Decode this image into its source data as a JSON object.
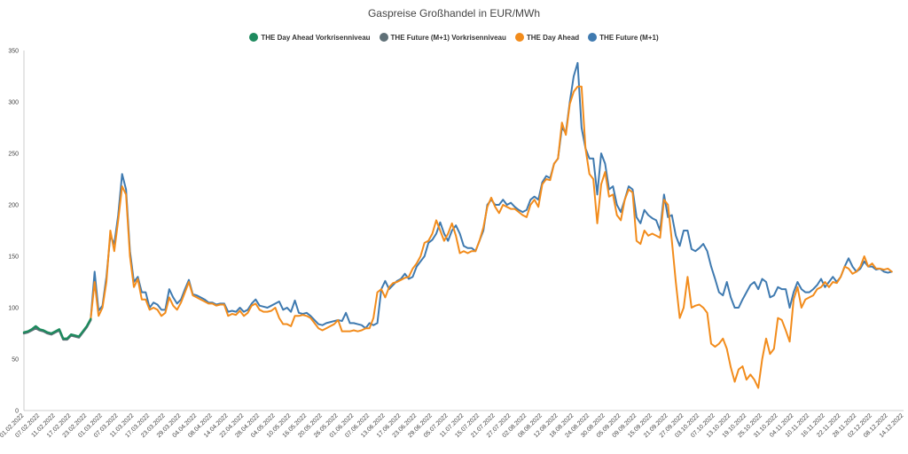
{
  "chart_data": {
    "type": "line",
    "title": "Gaspreise Großhandel in EUR/MWh",
    "xlabel": "",
    "ylabel": "",
    "ylim": [
      0,
      350
    ],
    "yticks": [
      0,
      50,
      100,
      150,
      200,
      250,
      300,
      350
    ],
    "grid": false,
    "legend_position": "top-center",
    "x_tick_labels": [
      "01.02.2022",
      "07.02.2022",
      "11.02.2022",
      "17.02.2022",
      "23.02.2022",
      "01.03.2022",
      "07.03.2022",
      "11.03.2022",
      "17.03.2022",
      "23.03.2022",
      "29.03.2022",
      "04.04.2022",
      "08.04.2022",
      "14.04.2022",
      "22.04.2022",
      "28.04.2022",
      "04.05.2022",
      "10.05.2022",
      "16.05.2022",
      "20.05.2022",
      "26.05.2022",
      "01.06.2022",
      "07.06.2022",
      "13.06.2022",
      "17.06.2022",
      "23.06.2022",
      "29.06.2022",
      "05.07.2022",
      "11.07.2022",
      "15.07.2022",
      "21.07.2022",
      "27.07.2022",
      "02.08.2022",
      "08.08.2022",
      "12.08.2022",
      "18.08.2022",
      "24.08.2022",
      "30.08.2022",
      "05.09.2022",
      "09.09.2022",
      "15.09.2022",
      "21.09.2022",
      "27.09.2022",
      "03.10.2022",
      "07.10.2022",
      "13.10.2022",
      "19.10.2022",
      "25.10.2022",
      "31.10.2022",
      "04.11.2022",
      "10.11.2022",
      "16.11.2022",
      "22.11.2022",
      "28.11.2022",
      "02.12.2022",
      "08.12.2022",
      "14.12.2022"
    ],
    "n_points": 225,
    "series": [
      {
        "name": "THE Day Ahead Vorkrisenniveau",
        "color": "#1e8a5e",
        "start_index": 0,
        "values": [
          76,
          77,
          79,
          82,
          79,
          78,
          76,
          75,
          77,
          79,
          70,
          70,
          74,
          73,
          72,
          77,
          82,
          89
        ]
      },
      {
        "name": "THE Future (M+1) Vorkrisenniveau",
        "color": "#5f7077",
        "start_index": 0,
        "values": [
          75,
          76,
          78,
          80,
          78,
          77,
          75,
          74,
          76,
          78,
          69,
          69,
          73,
          72,
          71,
          76,
          81,
          88
        ]
      },
      {
        "name": "THE Day Ahead",
        "color": "#f28c1c",
        "start_index": 17,
        "values": [
          89,
          125,
          92,
          100,
          125,
          175,
          155,
          185,
          218,
          210,
          150,
          120,
          128,
          108,
          108,
          98,
          100,
          98,
          92,
          95,
          110,
          102,
          98,
          105,
          115,
          125,
          112,
          110,
          108,
          106,
          104,
          104,
          102,
          103,
          103,
          92,
          94,
          93,
          97,
          92,
          95,
          102,
          104,
          98,
          96,
          96,
          97,
          100,
          90,
          84,
          84,
          82,
          92,
          92,
          93,
          92,
          90,
          85,
          80,
          78,
          80,
          82,
          84,
          88,
          77,
          77,
          77,
          78,
          77,
          78,
          80,
          80,
          90,
          115,
          118,
          110,
          120,
          124,
          125,
          127,
          129,
          130,
          138,
          143,
          150,
          163,
          165,
          172,
          185,
          175,
          165,
          172,
          182,
          170,
          153,
          155,
          153,
          155,
          155,
          165,
          178,
          198,
          207,
          198,
          192,
          200,
          198,
          196,
          196,
          193,
          190,
          188,
          200,
          205,
          198,
          220,
          225,
          224,
          240,
          245,
          280,
          268,
          298,
          310,
          315,
          315,
          255,
          230,
          225,
          182,
          220,
          232,
          208,
          210,
          190,
          185,
          205,
          215,
          212,
          165,
          162,
          175,
          170,
          172,
          170,
          168,
          205,
          200,
          165,
          125,
          90,
          100,
          130,
          100,
          102,
          103,
          100,
          95,
          65,
          62,
          65,
          70,
          60,
          42,
          28,
          40,
          43,
          30,
          35,
          30,
          22,
          50,
          70,
          55,
          60,
          90,
          88,
          78,
          67,
          108,
          120,
          100,
          108,
          110,
          112,
          118,
          120,
          125,
          120,
          125,
          124,
          130,
          140,
          138,
          133,
          135,
          140,
          150,
          140,
          143,
          138,
          138,
          137,
          138,
          135
        ]
      },
      {
        "name": "THE Future (M+1)",
        "color": "#3f7ab0",
        "start_index": 17,
        "values": [
          89,
          135,
          97,
          102,
          130,
          170,
          162,
          190,
          230,
          215,
          155,
          125,
          130,
          115,
          115,
          100,
          105,
          103,
          98,
          98,
          118,
          110,
          104,
          108,
          118,
          127,
          113,
          112,
          110,
          108,
          105,
          105,
          103,
          104,
          104,
          96,
          97,
          96,
          100,
          96,
          98,
          104,
          108,
          102,
          101,
          100,
          102,
          104,
          106,
          98,
          100,
          96,
          107,
          95,
          94,
          95,
          92,
          88,
          84,
          83,
          85,
          86,
          87,
          88,
          87,
          95,
          85,
          85,
          84,
          83,
          80,
          85,
          83,
          85,
          118,
          126,
          118,
          122,
          126,
          128,
          133,
          128,
          130,
          140,
          145,
          150,
          163,
          166,
          172,
          183,
          172,
          165,
          175,
          180,
          172,
          160,
          158,
          158,
          155,
          165,
          175,
          200,
          205,
          200,
          200,
          205,
          200,
          202,
          198,
          195,
          193,
          195,
          205,
          208,
          205,
          222,
          228,
          226,
          240,
          245,
          275,
          270,
          300,
          325,
          338,
          275,
          255,
          245,
          245,
          210,
          250,
          240,
          215,
          218,
          200,
          193,
          205,
          218,
          215,
          188,
          182,
          195,
          190,
          187,
          185,
          175,
          210,
          188,
          190,
          170,
          160,
          175,
          175,
          157,
          155,
          158,
          162,
          155,
          140,
          128,
          115,
          112,
          125,
          110,
          100,
          100,
          108,
          115,
          122,
          125,
          118,
          128,
          125,
          110,
          112,
          120,
          118,
          118,
          100,
          115,
          125,
          118,
          115,
          115,
          118,
          122,
          128,
          120,
          125,
          130,
          125,
          130,
          140,
          148,
          140,
          135,
          138,
          145,
          140,
          140,
          137,
          138,
          135,
          134,
          135
        ]
      }
    ]
  }
}
